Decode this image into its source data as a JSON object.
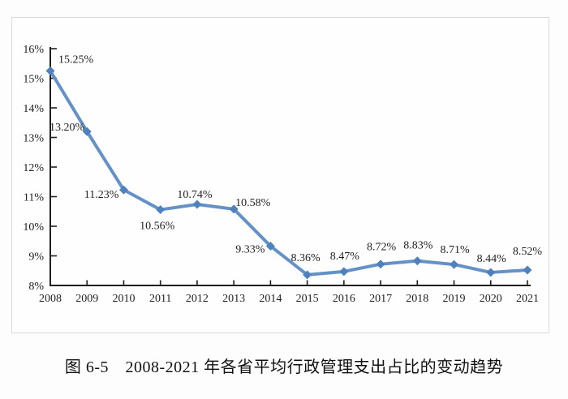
{
  "caption": "图 6-5　2008-2021 年各省平均行政管理支出占比的变动趋势",
  "colors": {
    "line": "#6492c6",
    "marker": "#4f81bd",
    "axis": "#1f1f1f",
    "text": "#1f1f1f",
    "box_border": "#d9d9d9",
    "box_fill": "#fefefe",
    "page_bg": "#fdfdfd"
  },
  "chart_data": {
    "type": "line",
    "title": "图 6-5　2008-2021 年各省平均行政管理支出占比的变动趋势",
    "categories": [
      "2008",
      "2009",
      "2010",
      "2011",
      "2012",
      "2013",
      "2014",
      "2015",
      "2016",
      "2017",
      "2018",
      "2019",
      "2020",
      "2021"
    ],
    "values": [
      15.25,
      13.2,
      11.23,
      10.56,
      10.74,
      10.58,
      9.33,
      8.36,
      8.47,
      8.72,
      8.83,
      8.71,
      8.44,
      8.52
    ],
    "point_labels": [
      "15.25%",
      "13.20%",
      "11.23%",
      "10.56%",
      "10.74%",
      "10.58%",
      "9.33%",
      "8.36%",
      "8.47%",
      "8.72%",
      "8.83%",
      "8.71%",
      "8.44%",
      "8.52%"
    ],
    "y_ticks": [
      "8%",
      "9%",
      "10%",
      "11%",
      "12%",
      "13%",
      "14%",
      "15%",
      "16%"
    ],
    "ylim": [
      8,
      16
    ],
    "xlabel": "",
    "ylabel": "",
    "grid": false,
    "legend": false,
    "marker_shape": "diamond"
  }
}
